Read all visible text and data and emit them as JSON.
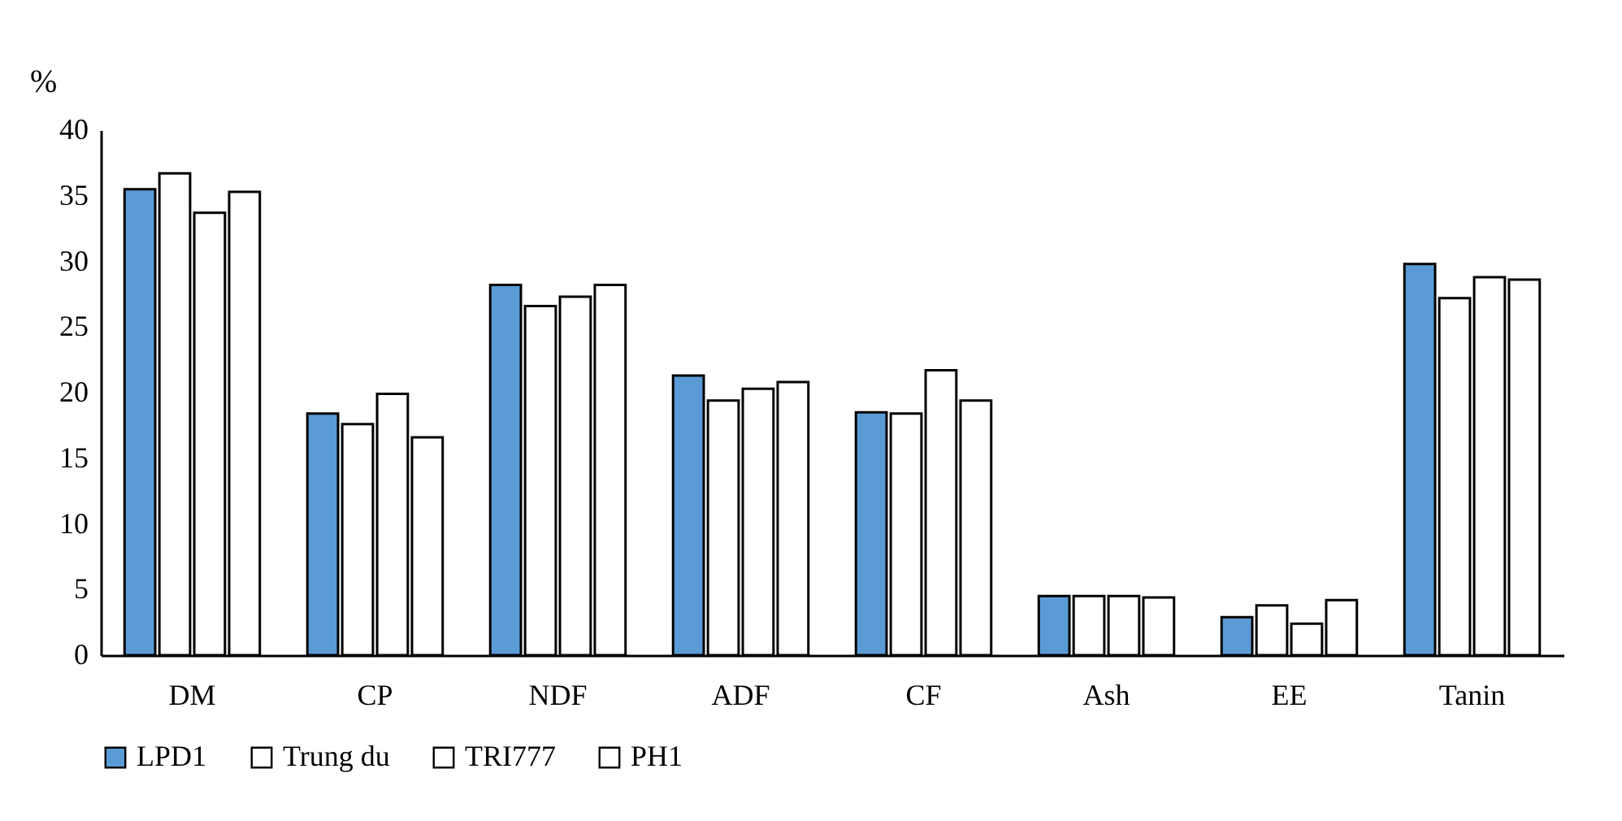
{
  "chart_data": {
    "type": "bar",
    "ylabel": "%",
    "categories": [
      "DM",
      "CP",
      "NDF",
      "ADF",
      "CF",
      "Ash",
      "EE",
      "Tanin"
    ],
    "series": [
      {
        "name": "LPD1",
        "color": "#5b9bd5",
        "values": [
          35.5,
          18.4,
          28.2,
          21.3,
          18.5,
          4.5,
          2.9,
          29.8
        ]
      },
      {
        "name": "Trung du",
        "color": "#ffffff",
        "values": [
          36.7,
          17.6,
          26.6,
          19.4,
          18.4,
          4.5,
          3.8,
          27.2
        ]
      },
      {
        "name": "TRI777",
        "color": "#ffffff",
        "values": [
          33.7,
          19.9,
          27.3,
          20.3,
          21.7,
          4.5,
          2.4,
          28.8
        ]
      },
      {
        "name": "PH1",
        "color": "#ffffff",
        "values": [
          35.3,
          16.6,
          28.2,
          20.8,
          19.4,
          4.4,
          4.2,
          28.6
        ]
      }
    ],
    "ylim": [
      0,
      40
    ],
    "yticks": [
      0,
      5,
      10,
      15,
      20,
      25,
      30,
      35,
      40
    ],
    "grid": false,
    "legend": "bottom"
  }
}
